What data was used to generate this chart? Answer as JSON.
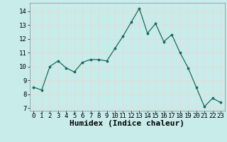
{
  "x": [
    0,
    1,
    2,
    3,
    4,
    5,
    6,
    7,
    8,
    9,
    10,
    11,
    12,
    13,
    14,
    15,
    16,
    17,
    18,
    19,
    20,
    21,
    22,
    23
  ],
  "y": [
    8.5,
    8.3,
    10.0,
    10.4,
    9.9,
    9.6,
    10.3,
    10.5,
    10.5,
    10.4,
    11.3,
    12.2,
    13.2,
    14.2,
    12.4,
    13.1,
    11.8,
    12.3,
    11.0,
    9.9,
    8.5,
    7.1,
    7.7,
    7.4
  ],
  "xlabel": "Humidex (Indice chaleur)",
  "ylim": [
    6.8,
    14.6
  ],
  "xlim": [
    -0.5,
    23.5
  ],
  "yticks": [
    7,
    8,
    9,
    10,
    11,
    12,
    13,
    14
  ],
  "xticks": [
    0,
    1,
    2,
    3,
    4,
    5,
    6,
    7,
    8,
    9,
    10,
    11,
    12,
    13,
    14,
    15,
    16,
    17,
    18,
    19,
    20,
    21,
    22,
    23
  ],
  "line_color": "#1a6b5a",
  "marker": ".",
  "marker_color": "#1a6b5a",
  "bg_color": "#c8ecea",
  "grid_color": "#e8d8d8",
  "tick_fontsize": 6.5,
  "xlabel_fontsize": 8,
  "fig_width": 3.2,
  "fig_height": 2.0,
  "dpi": 100
}
